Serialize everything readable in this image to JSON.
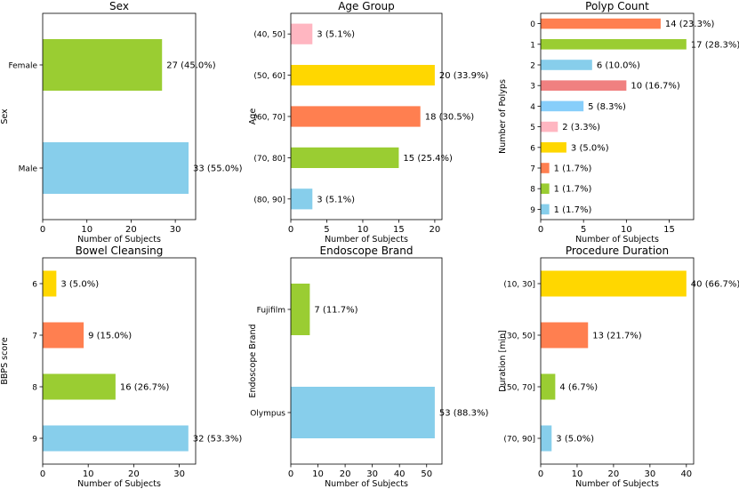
{
  "chart_data": [
    {
      "type": "bar",
      "orientation": "horizontal",
      "title": "Sex",
      "xlabel": "Number of Subjects",
      "ylabel": "Sex",
      "xlim": [
        0,
        34.6
      ],
      "xticks": [
        0,
        10,
        20,
        30
      ],
      "categories": [
        "Female",
        "Male"
      ],
      "values": [
        27,
        33
      ],
      "labels": [
        "27 (45.0%)",
        "33 (55.0%)"
      ],
      "colors": [
        "#9ACD32",
        "#87CEEB"
      ]
    },
    {
      "type": "bar",
      "orientation": "horizontal",
      "title": "Age Group",
      "xlabel": "Number of Subjects",
      "ylabel": "Age",
      "xlim": [
        0,
        21
      ],
      "xticks": [
        0,
        5,
        10,
        15,
        20
      ],
      "categories": [
        "(40, 50]",
        "(50, 60]",
        "(60, 70]",
        "(70, 80]",
        "(80, 90]"
      ],
      "values": [
        3,
        20,
        18,
        15,
        3
      ],
      "labels": [
        "3 (5.1%)",
        "20 (33.9%)",
        "18 (30.5%)",
        "15 (25.4%)",
        "3 (5.1%)"
      ],
      "colors": [
        "#FFB6C1",
        "#FFD700",
        "#FF7F50",
        "#9ACD32",
        "#87CEEB"
      ]
    },
    {
      "type": "bar",
      "orientation": "horizontal",
      "title": "Polyp Count",
      "xlabel": "Number of Subjects",
      "ylabel": "Number of Polyps",
      "xlim": [
        0,
        17.85
      ],
      "xticks": [
        0,
        5,
        10,
        15
      ],
      "categories": [
        "0",
        "1",
        "2",
        "3",
        "4",
        "5",
        "6",
        "7",
        "8",
        "9"
      ],
      "values": [
        14,
        17,
        6,
        10,
        5,
        2,
        3,
        1,
        1,
        1
      ],
      "labels": [
        "14 (23.3%)",
        "17 (28.3%)",
        "6 (10.0%)",
        "10 (16.7%)",
        "5 (8.3%)",
        "2 (3.3%)",
        "3 (5.0%)",
        "1 (1.7%)",
        "1 (1.7%)",
        "1 (1.7%)"
      ],
      "colors": [
        "#FF7F50",
        "#9ACD32",
        "#87CEEB",
        "#F08080",
        "#87CEFA",
        "#FFB6C1",
        "#FFD700",
        "#FF7F50",
        "#9ACD32",
        "#87CEEB"
      ]
    },
    {
      "type": "bar",
      "orientation": "horizontal",
      "title": "Bowel Cleansing",
      "xlabel": "Number of Subjects",
      "ylabel": "BBPS score",
      "xlim": [
        0,
        33.6
      ],
      "xticks": [
        0,
        10,
        20,
        30
      ],
      "categories": [
        "6",
        "7",
        "8",
        "9"
      ],
      "values": [
        3,
        9,
        16,
        32
      ],
      "labels": [
        "3 (5.0%)",
        "9 (15.0%)",
        "16 (26.7%)",
        "32 (53.3%)"
      ],
      "colors": [
        "#FFD700",
        "#FF7F50",
        "#9ACD32",
        "#87CEEB"
      ]
    },
    {
      "type": "bar",
      "orientation": "horizontal",
      "title": "Endoscope Brand",
      "xlabel": "Number of Subjects",
      "ylabel": "Endoscope Brand",
      "xlim": [
        0,
        55.65
      ],
      "xticks": [
        0,
        10,
        20,
        30,
        40,
        50
      ],
      "categories": [
        "Fujifilm",
        "Olympus"
      ],
      "values": [
        7,
        53
      ],
      "labels": [
        "7 (11.7%)",
        "53 (88.3%)"
      ],
      "colors": [
        "#9ACD32",
        "#87CEEB"
      ]
    },
    {
      "type": "bar",
      "orientation": "horizontal",
      "title": "Procedure Duration",
      "xlabel": "Number of Subjects",
      "ylabel": "Duration [min]",
      "xlim": [
        0,
        42
      ],
      "xticks": [
        0,
        10,
        20,
        30,
        40
      ],
      "categories": [
        "(10, 30]",
        "(30, 50]",
        "(50, 70]",
        "(70, 90]"
      ],
      "values": [
        40,
        13,
        4,
        3
      ],
      "labels": [
        "40 (66.7%)",
        "13 (21.7%)",
        "4 (6.7%)",
        "3 (5.0%)"
      ],
      "colors": [
        "#FFD700",
        "#FF7F50",
        "#9ACD32",
        "#87CEEB"
      ]
    }
  ]
}
